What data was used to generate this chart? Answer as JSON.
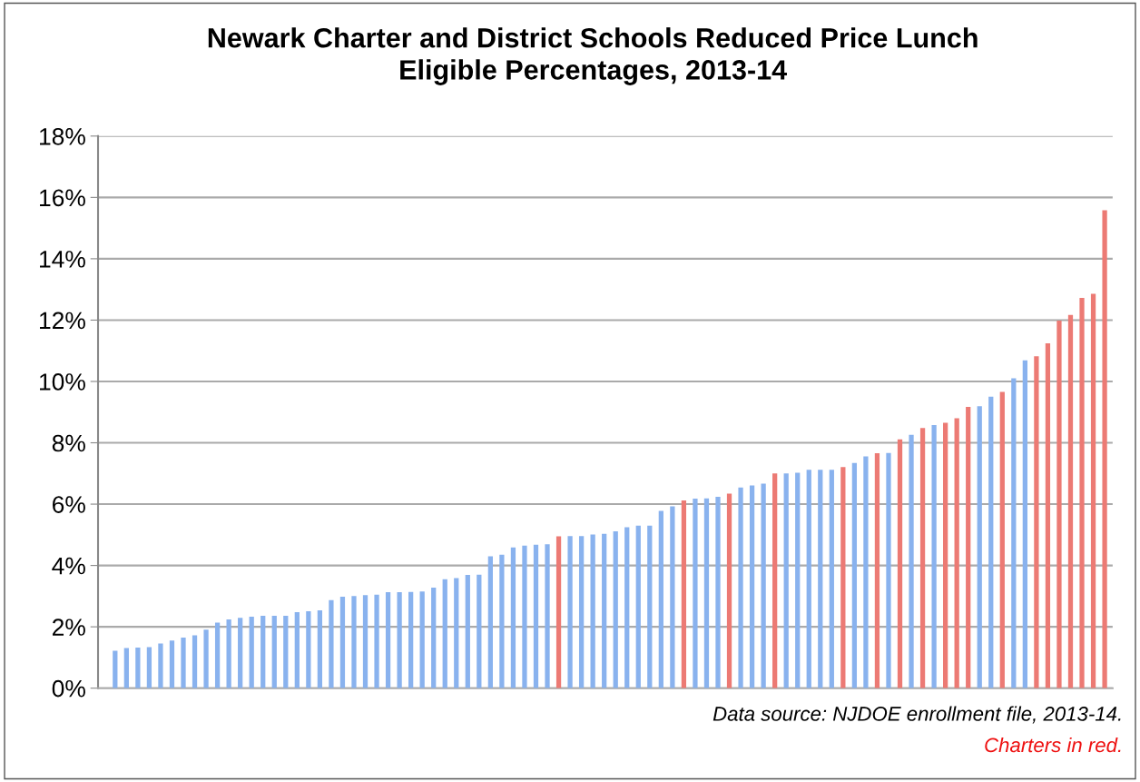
{
  "chart_data": {
    "type": "bar",
    "title": "Newark Charter and District Schools Reduced Price Lunch\nEligible Percentages, 2013-14",
    "categories": [
      null,
      null,
      null,
      null,
      null,
      null,
      null,
      null,
      null,
      null,
      null,
      null,
      null,
      null,
      null,
      null,
      null,
      null,
      null,
      null,
      null,
      null,
      null,
      null,
      null,
      null,
      null,
      null,
      null,
      null,
      null,
      null,
      null,
      null,
      null,
      null,
      null,
      null,
      null,
      null,
      null,
      null,
      null,
      null,
      null,
      null,
      null,
      null,
      null,
      null,
      null,
      null,
      null,
      null,
      null,
      null,
      null,
      null,
      null,
      null,
      null,
      null,
      null,
      null,
      null,
      null,
      null,
      null,
      null,
      null,
      null,
      null,
      null,
      null,
      null,
      null,
      null,
      null,
      null,
      null,
      null,
      null,
      null,
      null,
      null,
      null,
      null,
      null
    ],
    "values": [
      1.22,
      1.31,
      1.32,
      1.34,
      1.46,
      1.55,
      1.65,
      1.72,
      1.91,
      2.14,
      2.24,
      2.29,
      2.33,
      2.36,
      2.36,
      2.36,
      2.48,
      2.51,
      2.54,
      2.87,
      2.98,
      3.0,
      3.03,
      3.05,
      3.13,
      3.13,
      3.14,
      3.15,
      3.28,
      3.55,
      3.59,
      3.69,
      3.7,
      4.3,
      4.35,
      4.59,
      4.65,
      4.68,
      4.69,
      4.95,
      4.96,
      4.96,
      5.01,
      5.03,
      5.11,
      5.25,
      5.3,
      5.3,
      5.78,
      5.93,
      6.12,
      6.18,
      6.19,
      6.24,
      6.34,
      6.54,
      6.61,
      6.67,
      7.0,
      7.0,
      7.02,
      7.12,
      7.12,
      7.12,
      7.21,
      7.34,
      7.56,
      7.66,
      7.67,
      8.11,
      8.26,
      8.48,
      8.58,
      8.65,
      8.8,
      9.17,
      9.19,
      9.5,
      9.66,
      10.1,
      10.69,
      10.82,
      11.24,
      11.98,
      12.17,
      12.72,
      12.86,
      15.58
    ],
    "colors": [
      "#89b2ee",
      "#89b2ee",
      "#89b2ee",
      "#89b2ee",
      "#89b2ee",
      "#89b2ee",
      "#89b2ee",
      "#89b2ee",
      "#89b2ee",
      "#89b2ee",
      "#89b2ee",
      "#89b2ee",
      "#89b2ee",
      "#89b2ee",
      "#89b2ee",
      "#89b2ee",
      "#89b2ee",
      "#89b2ee",
      "#89b2ee",
      "#89b2ee",
      "#89b2ee",
      "#89b2ee",
      "#89b2ee",
      "#89b2ee",
      "#89b2ee",
      "#89b2ee",
      "#89b2ee",
      "#89b2ee",
      "#89b2ee",
      "#89b2ee",
      "#89b2ee",
      "#89b2ee",
      "#89b2ee",
      "#89b2ee",
      "#89b2ee",
      "#89b2ee",
      "#89b2ee",
      "#89b2ee",
      "#89b2ee",
      "#ec7a74",
      "#89b2ee",
      "#89b2ee",
      "#89b2ee",
      "#89b2ee",
      "#89b2ee",
      "#89b2ee",
      "#89b2ee",
      "#89b2ee",
      "#89b2ee",
      "#89b2ee",
      "#ec7a74",
      "#89b2ee",
      "#89b2ee",
      "#89b2ee",
      "#ec7a74",
      "#89b2ee",
      "#89b2ee",
      "#89b2ee",
      "#ec7a74",
      "#89b2ee",
      "#89b2ee",
      "#89b2ee",
      "#89b2ee",
      "#89b2ee",
      "#ec7a74",
      "#89b2ee",
      "#89b2ee",
      "#ec7a74",
      "#89b2ee",
      "#ec7a74",
      "#89b2ee",
      "#ec7a74",
      "#89b2ee",
      "#ec7a74",
      "#ec7a74",
      "#ec7a74",
      "#89b2ee",
      "#89b2ee",
      "#ec7a74",
      "#89b2ee",
      "#89b2ee",
      "#ec7a74",
      "#ec7a74",
      "#ec7a74",
      "#ec7a74",
      "#ec7a74",
      "#ec7a74",
      "#ec7a74"
    ],
    "ylim": [
      0,
      18
    ],
    "yticks": [
      {
        "value": 0,
        "label": "0%"
      },
      {
        "value": 2,
        "label": "2%"
      },
      {
        "value": 4,
        "label": "4%"
      },
      {
        "value": 6,
        "label": "6%"
      },
      {
        "value": 8,
        "label": "8%"
      },
      {
        "value": 10,
        "label": "10%"
      },
      {
        "value": 12,
        "label": "12%"
      },
      {
        "value": 14,
        "label": "14%"
      },
      {
        "value": 16,
        "label": "16%"
      },
      {
        "value": 18,
        "label": "18%"
      }
    ],
    "grid": "y",
    "annotations": [
      "Data source: NJDOE enrollment file, 2013-14.",
      "Charters in red."
    ]
  }
}
